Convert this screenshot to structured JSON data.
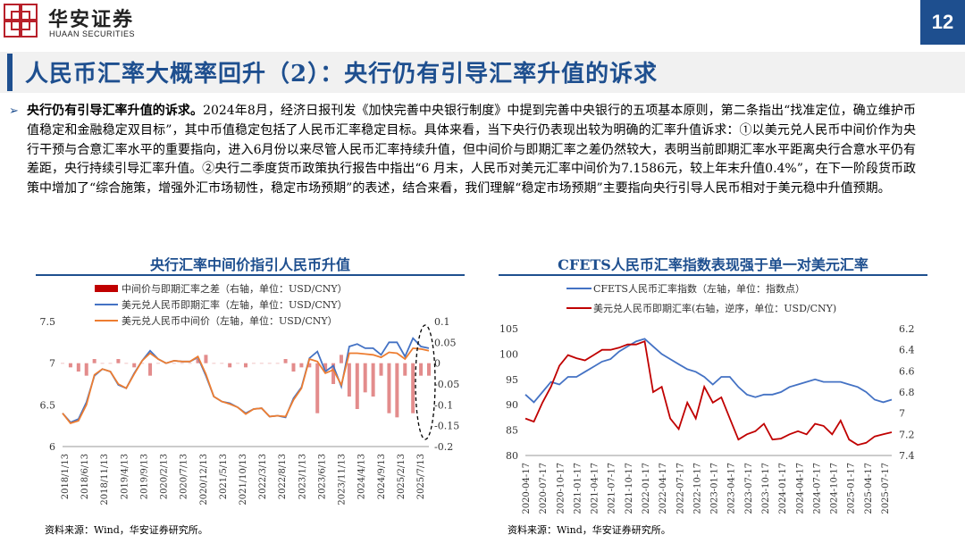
{
  "header": {
    "brand_cn": "华安证券",
    "brand_en": "HUAAN SECURITIES",
    "page_number": "12",
    "title": "人民币汇率大概率回升（2）：央行仍有引导汇率升值的诉求"
  },
  "body": {
    "lead": "央行仍有引导汇率升值的诉求。",
    "text": "2024年8月，经济日报刊发《加快完善中央银行制度》中提到完善中央银行的五项基本原则，第二条指出“找准定位，确立维护币值稳定和金融稳定双目标”，其中币值稳定包括了人民币汇率稳定目标。具体来看，当下央行仍表现出较为明确的汇率升值诉求：①以美元兑人民币中间价作为央行干预与合意汇率水平的重要指向，进入6月份以来尽管人民币汇率持续升值，但中间价与即期汇率之差仍然较大，表明当前即期汇率水平距离央行合意水平仍有差距，央行持续引导汇率升值。②央行二季度货币政策执行报告中指出“6 月末，人民币对美元汇率中间价为7.1586元，较上年末升值0.4%”，在下一阶段货币政策中增加了“综合施策，增强外汇市场韧性，稳定市场预期”的表述，结合来看，我们理解“稳定市场预期”主要指向央行引导人民币相对于美元稳中升值预期。"
  },
  "charts": {
    "left": {
      "title": "央行汇率中间价指引人民币升值",
      "source": "资料来源：Wind，华安证券研究所。"
    },
    "right": {
      "title": "CFETS人民币汇率指数表现强于单一对美元汇率",
      "source": "资料来源：Wind，华安证券研究所。"
    }
  },
  "chart_data": [
    {
      "type": "line",
      "title": "央行汇率中间价指引人民币升值",
      "x_ticks": [
        "2018/1/13",
        "2018/6/13",
        "2018/11/13",
        "2019/4/13",
        "2019/9/13",
        "2020/2/13",
        "2020/7/13",
        "2020/12/13",
        "2021/5/13",
        "2021/10/13",
        "2022/3/13",
        "2022/8/13",
        "2023/1/13",
        "2023/6/13",
        "2023/11/13",
        "2024/4/13",
        "2024/9/13",
        "2025/2/13",
        "2025/7/13"
      ],
      "y_left": {
        "ticks": [
          "6",
          "6.5",
          "7",
          "7.5"
        ],
        "range": [
          6,
          7.5
        ]
      },
      "y_right": {
        "ticks": [
          "-0.2",
          "-0.15",
          "-0.1",
          "-0.05",
          "0",
          "0.05",
          "0.1"
        ],
        "range": [
          -0.2,
          0.1
        ]
      },
      "legend": [
        {
          "name": "中间价与即期汇率之差（右轴，单位：USD/CNY）",
          "color": "#c00000",
          "kind": "bar"
        },
        {
          "name": "美元兑人民币即期汇率（左轴，单位：USD/CNY）",
          "color": "#4472c4",
          "kind": "line"
        },
        {
          "name": "美元兑人民币中间价（左轴，单位：USD/CNY）",
          "color": "#ed7d31",
          "kind": "line"
        }
      ],
      "x_index": [
        0,
        2,
        4,
        6,
        8,
        10,
        12,
        14,
        16,
        18,
        20,
        22,
        24,
        26,
        28,
        30,
        32,
        34,
        36,
        38,
        40,
        42,
        44,
        46,
        48,
        50,
        52,
        54,
        56,
        58,
        60,
        62,
        64,
        66,
        68,
        70,
        72,
        74,
        76,
        78,
        80,
        82,
        84,
        86,
        88,
        90,
        92
      ],
      "series": [
        {
          "name": "美元兑人民币即期汇率",
          "values": [
            6.4,
            6.29,
            6.33,
            6.53,
            6.85,
            6.93,
            6.9,
            6.74,
            6.7,
            6.88,
            7.03,
            7.15,
            7.05,
            7.0,
            7.03,
            7.02,
            7.02,
            7.07,
            6.85,
            6.6,
            6.54,
            6.52,
            6.47,
            6.4,
            6.45,
            6.46,
            6.36,
            6.37,
            6.35,
            6.58,
            6.71,
            7.06,
            7.14,
            6.9,
            6.97,
            6.72,
            7.2,
            7.23,
            7.18,
            7.18,
            7.1,
            7.25,
            7.25,
            7.08,
            7.3,
            7.2,
            7.18
          ]
        },
        {
          "name": "美元兑人民币中间价",
          "values": [
            6.4,
            6.28,
            6.31,
            6.5,
            6.86,
            6.93,
            6.9,
            6.75,
            6.7,
            6.87,
            7.03,
            7.12,
            7.05,
            7.0,
            7.03,
            7.02,
            7.02,
            7.08,
            6.87,
            6.6,
            6.54,
            6.51,
            6.47,
            6.39,
            6.45,
            6.46,
            6.36,
            6.37,
            6.36,
            6.56,
            6.7,
            7.05,
            7.02,
            6.88,
            6.92,
            6.74,
            7.12,
            7.12,
            7.11,
            7.1,
            7.07,
            7.13,
            7.12,
            7.05,
            7.18,
            7.17,
            7.15
          ]
        },
        {
          "name": "中间价与即期汇率之差",
          "values": [
            0.0,
            -0.01,
            -0.02,
            -0.03,
            0.01,
            0.0,
            0.0,
            0.01,
            0.0,
            -0.01,
            0.0,
            -0.03,
            0.0,
            0.0,
            0.0,
            0.0,
            0.0,
            0.01,
            0.02,
            0.0,
            0.0,
            -0.01,
            0.0,
            -0.01,
            0.0,
            0.0,
            0.0,
            0.0,
            0.01,
            -0.02,
            -0.01,
            -0.01,
            -0.12,
            -0.02,
            -0.05,
            0.02,
            -0.08,
            -0.11,
            -0.07,
            -0.08,
            -0.03,
            -0.12,
            -0.13,
            -0.03,
            -0.12,
            -0.03,
            -0.03
          ]
        }
      ]
    },
    {
      "type": "line",
      "title": "CFETS人民币汇率指数表现强于单一对美元汇率",
      "x_ticks": [
        "2020-04-17",
        "2020-07-17",
        "2020-10-17",
        "2021-01-17",
        "2021-04-17",
        "2021-07-17",
        "2021-10-17",
        "2022-01-17",
        "2022-04-17",
        "2022-07-17",
        "2022-10-17",
        "2023-01-17",
        "2023-04-17",
        "2023-07-17",
        "2023-10-17",
        "2024-01-17",
        "2024-04-17",
        "2024-07-17",
        "2024-10-17",
        "2025-01-17",
        "2025-04-17",
        "2025-07-17"
      ],
      "y_left": {
        "ticks": [
          "80",
          "85",
          "90",
          "95",
          "100",
          "105"
        ],
        "range": [
          80,
          105
        ]
      },
      "y_right": {
        "ticks": [
          "6.2",
          "6.4",
          "6.6",
          "6.8",
          "7",
          "7.2",
          "7.4"
        ],
        "range": [
          6.2,
          7.4
        ],
        "inverted": true
      },
      "legend": [
        {
          "name": "CFETS人民币汇率指数（左轴，单位：指数点）",
          "color": "#4472c4",
          "kind": "line"
        },
        {
          "name": "美元兑人民币即期汇率(右轴，逆序，单位：USD/CNY)",
          "color": "#c00000",
          "kind": "line"
        }
      ],
      "x_index": [
        0,
        1,
        2,
        3,
        4,
        5,
        6,
        7,
        8,
        9,
        10,
        11,
        12,
        13,
        14,
        15,
        16,
        17,
        18,
        19,
        20,
        21,
        22,
        23,
        24,
        25,
        26,
        27,
        28,
        29,
        30,
        31,
        32,
        33,
        34,
        35,
        36,
        37,
        38,
        39,
        40,
        41,
        42,
        43
      ],
      "series": [
        {
          "name": "CFETS人民币汇率指数",
          "values": [
            92.0,
            90.5,
            92.5,
            94.5,
            94.0,
            95.5,
            95.5,
            96.5,
            97.5,
            98.5,
            99.0,
            100.5,
            101.5,
            102.5,
            103.0,
            101.5,
            100.0,
            99.0,
            98.0,
            97.0,
            96.5,
            95.5,
            94.0,
            95.5,
            95.5,
            93.5,
            92.0,
            91.5,
            92.0,
            92.0,
            92.5,
            93.5,
            94.0,
            94.5,
            95.0,
            94.5,
            94.5,
            94.5,
            94.0,
            93.5,
            92.5,
            91.0,
            90.5,
            91.0
          ]
        },
        {
          "name": "美元兑人民币即期汇率",
          "values": [
            7.05,
            7.08,
            6.9,
            6.75,
            6.55,
            6.45,
            6.48,
            6.5,
            6.45,
            6.4,
            6.4,
            6.38,
            6.35,
            6.35,
            6.32,
            6.8,
            6.75,
            7.05,
            7.15,
            6.9,
            7.05,
            6.75,
            6.9,
            6.85,
            7.05,
            7.25,
            7.2,
            7.17,
            7.1,
            7.25,
            7.24,
            7.2,
            7.17,
            7.2,
            7.1,
            7.12,
            7.2,
            7.07,
            7.25,
            7.3,
            7.28,
            7.22,
            7.2,
            7.18
          ]
        }
      ]
    }
  ]
}
